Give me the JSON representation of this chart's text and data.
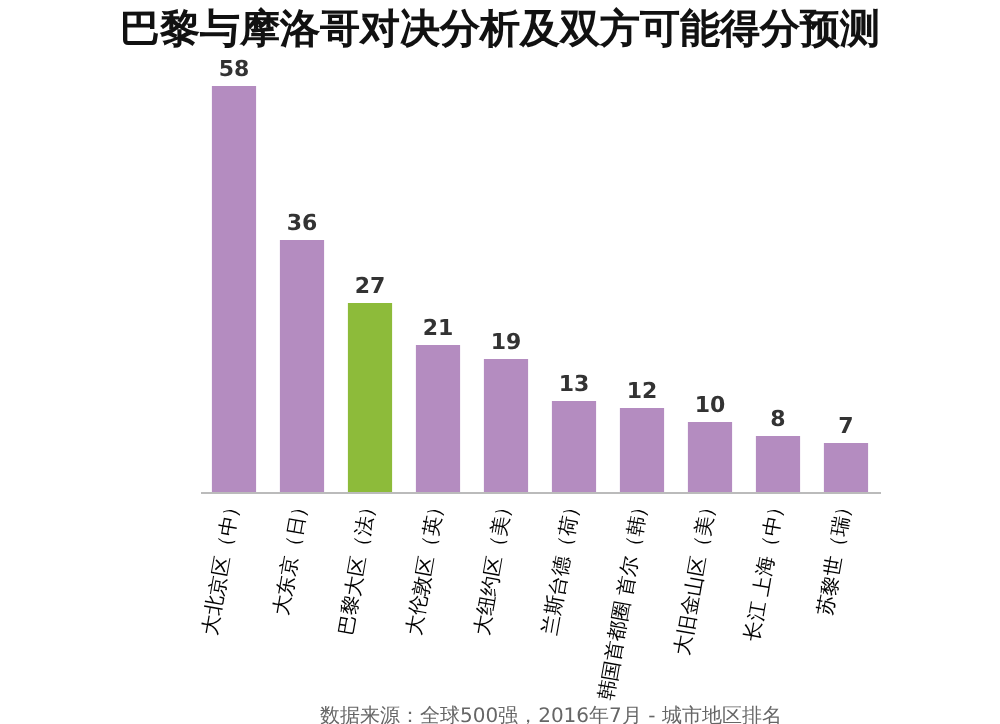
{
  "chart_data": {
    "type": "bar",
    "title": "巴黎与摩洛哥对决分析及双方可能得分预测",
    "categories": [
      "大北京区（中）",
      "大东京（日）",
      "巴黎大区（法）",
      "大伦敦区（英）",
      "大纽约区（美）",
      "兰斯台德（荷）",
      "韩国首都圈 首尔（韩）",
      "大旧金山区（美）",
      "长江 上海（中）",
      "苏黎世（瑞）"
    ],
    "values": [
      58,
      36,
      27,
      21,
      19,
      13,
      12,
      10,
      8,
      7
    ],
    "colors": [
      "#b48cc0",
      "#b48cc0",
      "#8dbb3a",
      "#b48cc0",
      "#b48cc0",
      "#b48cc0",
      "#b48cc0",
      "#b48cc0",
      "#b48cc0",
      "#b48cc0"
    ],
    "data_labels": true,
    "annotations": [
      "数据来源：全球500强，2016年7月 - 城市地区排名"
    ]
  }
}
